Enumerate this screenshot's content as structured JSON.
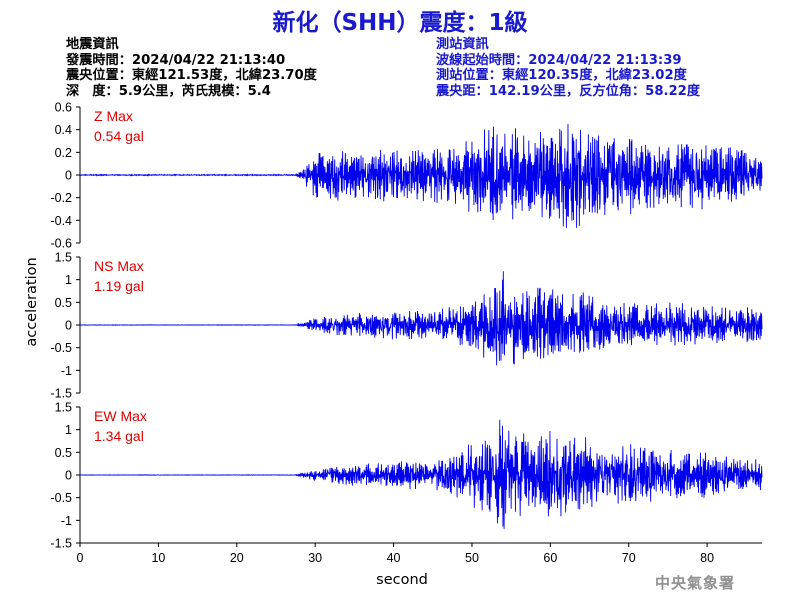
{
  "header": {
    "title": "新化（SHH）震度：1級"
  },
  "earthquake_info": {
    "heading": "地震資訊",
    "time": "發震時間：2024/04/22 21:13:40",
    "location": "震央位置：東經121.53度，北緯23.70度",
    "depth": "深　度：5.9公里，芮氏規模：5.4"
  },
  "station_info": {
    "heading": "測站資訊",
    "wave_start": "波線起始時間：2024/04/22 21:13:39",
    "location": "測站位置：東經120.35度，北緯23.02度",
    "distance": "震央距：142.19公里，反方位角：58.22度"
  },
  "footer": {
    "xlabel": "second",
    "ylabel": "acceleration",
    "agency": "中央氣象署"
  },
  "colors": {
    "trace": "#0000ee",
    "max_label": "#e00000",
    "title": "#1a1acd"
  },
  "chart_data": [
    {
      "type": "line",
      "component": "Z",
      "max_label": "Z Max",
      "max_value": "0.54 gal",
      "ylim": [
        -0.6,
        0.6
      ],
      "yticks": [
        0.6,
        0.4,
        0.2,
        0,
        -0.2,
        -0.4,
        -0.6
      ],
      "xlim": [
        0,
        87
      ],
      "noise_before_s": 28,
      "series": [
        {
          "x": [
            0,
            27.5,
            28.4,
            30,
            35,
            40,
            45,
            48,
            51,
            53,
            55,
            57,
            60,
            62,
            64,
            66,
            70,
            75,
            80,
            85,
            87
          ],
          "y": [
            0.005,
            0.005,
            0.06,
            0.22,
            0.24,
            0.25,
            0.26,
            0.3,
            0.42,
            0.46,
            0.44,
            0.38,
            0.4,
            0.54,
            0.45,
            0.4,
            0.38,
            0.3,
            0.32,
            0.22,
            0.15
          ]
        }
      ]
    },
    {
      "type": "line",
      "component": "NS",
      "max_label": "NS Max",
      "max_value": "1.19 gal",
      "ylim": [
        -1.5,
        1.5
      ],
      "yticks": [
        1.5,
        1,
        0.5,
        0,
        -0.5,
        -1,
        -1.5
      ],
      "xlim": [
        0,
        87
      ],
      "noise_before_s": 28,
      "series": [
        {
          "x": [
            0,
            27.5,
            28.4,
            30,
            35,
            40,
            45,
            48,
            51,
            53,
            54,
            55,
            57,
            60,
            62,
            64,
            66,
            70,
            75,
            80,
            85,
            87
          ],
          "y": [
            0.005,
            0.005,
            0.05,
            0.18,
            0.28,
            0.33,
            0.3,
            0.45,
            0.7,
            0.9,
            1.19,
            0.95,
            0.85,
            0.9,
            0.75,
            0.8,
            0.6,
            0.55,
            0.5,
            0.45,
            0.4,
            0.35
          ]
        }
      ]
    },
    {
      "type": "line",
      "component": "EW",
      "max_label": "EW Max",
      "max_value": "1.34 gal",
      "ylim": [
        -1.5,
        1.5
      ],
      "yticks": [
        1.5,
        1,
        0.5,
        0,
        -0.5,
        -1,
        -1.5
      ],
      "xlim": [
        0,
        87
      ],
      "noise_before_s": 28,
      "series": [
        {
          "x": [
            0,
            27.5,
            28.4,
            30,
            35,
            40,
            45,
            48,
            51,
            53,
            54,
            55,
            57,
            60,
            62,
            64,
            66,
            70,
            75,
            80,
            85,
            87
          ],
          "y": [
            0.005,
            0.005,
            0.05,
            0.15,
            0.25,
            0.3,
            0.35,
            0.55,
            0.85,
            1.1,
            1.34,
            1.15,
            1.0,
            1.05,
            0.95,
            0.9,
            0.75,
            0.7,
            0.6,
            0.55,
            0.45,
            0.35
          ]
        }
      ]
    }
  ],
  "x_axis": {
    "ticks": [
      0,
      10,
      20,
      30,
      40,
      50,
      60,
      70,
      80
    ],
    "range": [
      0,
      87
    ]
  }
}
